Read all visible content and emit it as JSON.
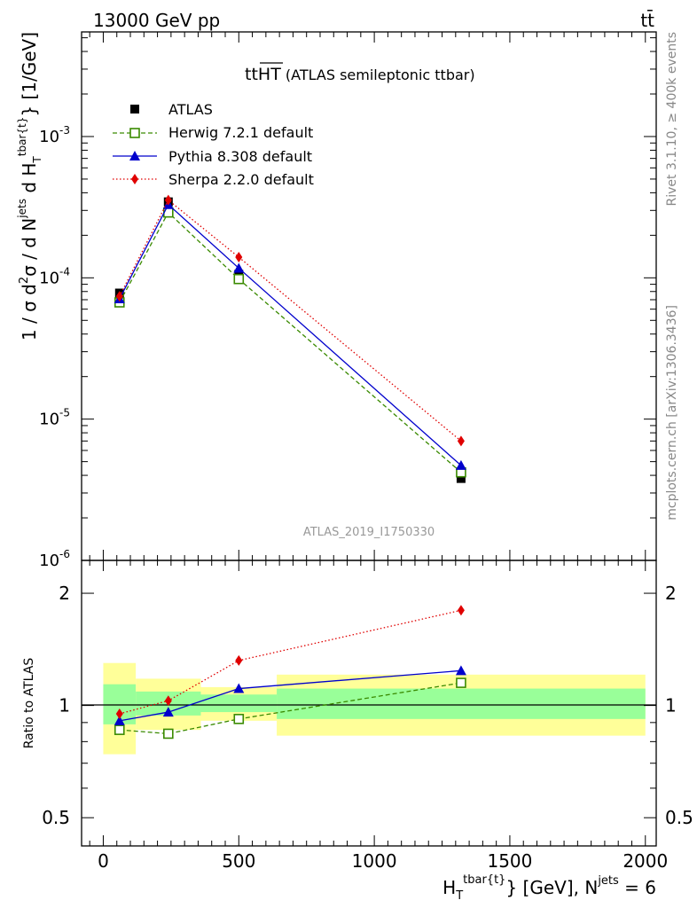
{
  "header": {
    "left": "13000 GeV pp",
    "right": "tt̄"
  },
  "side_labels": {
    "rivet": "Rivet 3.1.10, ≥ 400k events",
    "mcplots": "mcplots.cern.ch [arXiv:1306.3436]"
  },
  "main_title": {
    "prefix": "tt",
    "overlined": "HT",
    "suffix": " (ATLAS semileptonic ttbar)"
  },
  "analysis_id": "ATLAS_2019_I1750330",
  "y_axis_label": {
    "p1": "1 / σ d",
    "sup2": "2",
    "p2": "σ / d N",
    "jets": "jets",
    "p3": " d H",
    "sub_t": "T",
    "sup_tbar": "tbar{t}",
    "p4": "} [1/GeV]"
  },
  "x_axis_label": {
    "p1": "H",
    "sub_t": "T",
    "sup_tbar": "tbar{t}",
    "p2": "} [GeV], N",
    "sup_jets": "jets",
    "p3": " = 6"
  },
  "ratio_label": "Ratio to ATLAS",
  "legend": [
    {
      "label": "ATLAS"
    },
    {
      "label": "Herwig 7.2.1 default"
    },
    {
      "label": "Pythia 8.308 default"
    },
    {
      "label": "Sherpa 2.2.0 default"
    }
  ],
  "colors": {
    "herwig": "#3a8a00",
    "pythia": "#0000cc",
    "sherpa": "#e00000",
    "band_inner": "#99ff99",
    "band_outer": "#ffff99",
    "analysis_text": "#999999",
    "side_text": "#888888"
  },
  "chart_data": [
    {
      "type": "line",
      "panel": "main",
      "y_scale": "log",
      "xlim": [
        -80,
        2040
      ],
      "ylim": [
        1e-06,
        0.0055
      ],
      "y_tick_labels": [
        "10^-6",
        "10^-5",
        "10^-4",
        "10^-3"
      ],
      "x": [
        60,
        240,
        500,
        1320
      ],
      "series": [
        {
          "name": "ATLAS",
          "values": [
            7.8e-05,
            0.000345,
            0.000106,
            3.8e-06
          ]
        },
        {
          "name": "Herwig 7.2.1 default",
          "values": [
            6.7e-05,
            0.00029,
            9.8e-05,
            4.2e-06
          ]
        },
        {
          "name": "Pythia 8.308 default",
          "values": [
            7.1e-05,
            0.00033,
            0.000117,
            4.7e-06
          ]
        },
        {
          "name": "Sherpa 2.2.0 default",
          "values": [
            7.4e-05,
            0.000355,
            0.00014,
            7e-06
          ]
        }
      ]
    },
    {
      "type": "line",
      "panel": "ratio",
      "y_scale": "log",
      "xlim": [
        -80,
        2040
      ],
      "ylim": [
        0.42,
        2.45
      ],
      "x_tick_labels": [
        "0",
        "500",
        "1000",
        "1500",
        "2000"
      ],
      "y_tick_labels": [
        "0.5",
        "1",
        "2"
      ],
      "x": [
        60,
        240,
        500,
        1320
      ],
      "series": [
        {
          "name": "Herwig 7.2.1 default",
          "values": [
            0.86,
            0.84,
            0.92,
            1.15
          ]
        },
        {
          "name": "Pythia 8.308 default",
          "values": [
            0.91,
            0.96,
            1.11,
            1.24
          ]
        },
        {
          "name": "Sherpa 2.2.0 default",
          "values": [
            0.95,
            1.03,
            1.32,
            1.8
          ]
        }
      ],
      "bands": [
        {
          "x_from": 0,
          "x_to": 120,
          "inner": [
            0.89,
            1.14
          ],
          "outer": [
            0.74,
            1.3
          ]
        },
        {
          "x_from": 120,
          "x_to": 360,
          "inner": [
            0.94,
            1.09
          ],
          "outer": [
            0.86,
            1.18
          ]
        },
        {
          "x_from": 360,
          "x_to": 640,
          "inner": [
            0.96,
            1.07
          ],
          "outer": [
            0.91,
            1.12
          ]
        },
        {
          "x_from": 640,
          "x_to": 2000,
          "inner": [
            0.92,
            1.11
          ],
          "outer": [
            0.83,
            1.21
          ]
        }
      ]
    }
  ]
}
